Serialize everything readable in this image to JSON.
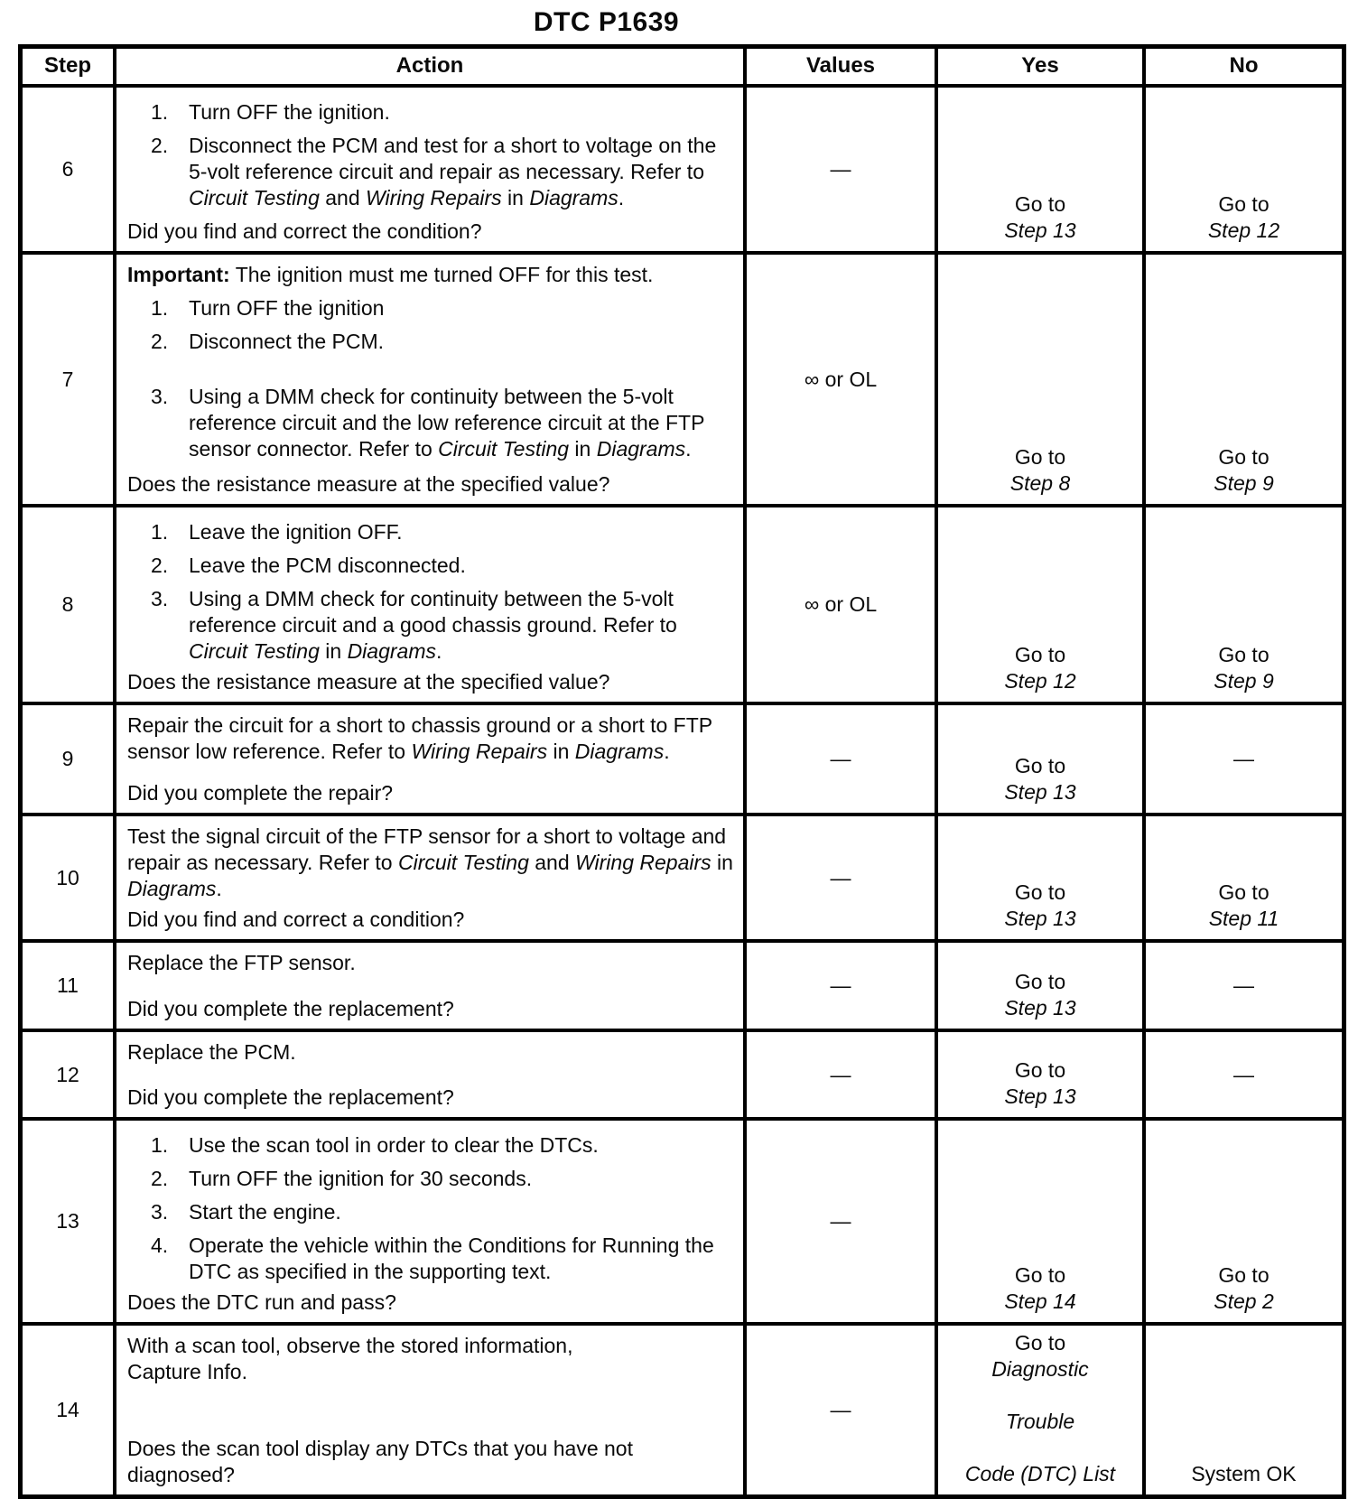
{
  "page_title": "DTC P1639",
  "table": {
    "em_dash": "—",
    "headers": {
      "step": "Step",
      "action": "Action",
      "values": "Values",
      "yes": "Yes",
      "no": "No"
    },
    "rows": [
      {
        "step": "6",
        "blocks": [
          {
            "type": "item",
            "n": "1.",
            "seg": [
              {
                "t": "Turn OFF the ignition."
              }
            ]
          },
          {
            "type": "item",
            "n": "2.",
            "seg": [
              {
                "t": "Disconnect the PCM and test for a short to voltage on the 5-volt reference circuit and repair as necessary. Refer to "
              },
              {
                "t": "Circuit Testing",
                "i": true
              },
              {
                "t": " and "
              },
              {
                "t": "Wiring Repairs",
                "i": true
              },
              {
                "t": " in "
              },
              {
                "t": "Diagrams",
                "i": true
              },
              {
                "t": "."
              }
            ]
          }
        ],
        "question": [
          {
            "t": "Did you find and correct the condition?"
          }
        ],
        "values": [
          {
            "t": "—"
          }
        ],
        "yes": [
          {
            "t": "Go to "
          },
          {
            "t": "Step 13",
            "i": true
          }
        ],
        "no": [
          {
            "t": "Go to "
          },
          {
            "t": "Step 12",
            "i": true
          }
        ]
      },
      {
        "step": "7",
        "blocks": [
          {
            "type": "para",
            "seg": [
              {
                "t": "Important:",
                "b": true
              },
              {
                "t": " The ignition must me turned OFF for this test."
              }
            ]
          },
          {
            "type": "item",
            "n": "1.",
            "seg": [
              {
                "t": "Turn OFF the ignition"
              }
            ]
          },
          {
            "type": "item",
            "n": "2.",
            "seg": [
              {
                "t": "Disconnect the PCM."
              }
            ]
          },
          {
            "type": "item",
            "n": "3.",
            "gap": true,
            "seg": [
              {
                "t": "Using a DMM check for continuity between the 5-volt reference circuit and the low reference circuit at the FTP sensor connector. Refer to "
              },
              {
                "t": "Circuit Testing",
                "i": true
              },
              {
                "t": " in "
              },
              {
                "t": "Diagrams",
                "i": true
              },
              {
                "t": "."
              }
            ]
          }
        ],
        "question": [
          {
            "t": "Does the resistance measure at the specified value?"
          }
        ],
        "values": [
          {
            "t": "∞ or OL"
          }
        ],
        "yes": [
          {
            "t": "Go to "
          },
          {
            "t": "Step 8",
            "i": true
          }
        ],
        "no": [
          {
            "t": "Go to "
          },
          {
            "t": "Step 9",
            "i": true
          }
        ]
      },
      {
        "step": "8",
        "blocks": [
          {
            "type": "item",
            "n": "1.",
            "seg": [
              {
                "t": "Leave the ignition OFF."
              }
            ]
          },
          {
            "type": "item",
            "n": "2.",
            "seg": [
              {
                "t": "Leave the PCM disconnected."
              }
            ]
          },
          {
            "type": "item",
            "n": "3.",
            "seg": [
              {
                "t": "Using a DMM check for continuity between the 5-volt reference circuit and a good chassis ground. Refer to "
              },
              {
                "t": "Circuit Testing",
                "i": true
              },
              {
                "t": " in "
              },
              {
                "t": "Diagrams",
                "i": true
              },
              {
                "t": "."
              }
            ]
          }
        ],
        "question": [
          {
            "t": "Does the resistance measure at the specified value?"
          }
        ],
        "values": [
          {
            "t": "∞ or OL"
          }
        ],
        "yes": [
          {
            "t": "Go to "
          },
          {
            "t": "Step 12",
            "i": true
          }
        ],
        "no": [
          {
            "t": "Go to "
          },
          {
            "t": "Step 9",
            "i": true
          }
        ]
      },
      {
        "step": "9",
        "blocks": [
          {
            "type": "para",
            "seg": [
              {
                "t": "Repair the circuit for a short to chassis ground or a short to FTP sensor low reference. Refer to "
              },
              {
                "t": "Wiring Repairs",
                "i": true
              },
              {
                "t": " in "
              },
              {
                "t": "Diagrams",
                "i": true
              },
              {
                "t": "."
              }
            ]
          }
        ],
        "question": [
          {
            "t": "Did you complete the repair?"
          }
        ],
        "values": [
          {
            "t": "—"
          }
        ],
        "yes": [
          {
            "t": "Go to "
          },
          {
            "t": "Step 13",
            "i": true
          }
        ],
        "no": [
          {
            "t": "—"
          }
        ]
      },
      {
        "step": "10",
        "blocks": [
          {
            "type": "para",
            "seg": [
              {
                "t": "Test the signal circuit of the FTP sensor for a short to voltage and repair as necessary. Refer to "
              },
              {
                "t": "Circuit Testing",
                "i": true
              },
              {
                "t": " and "
              },
              {
                "t": "Wiring Repairs",
                "i": true
              },
              {
                "t": " in "
              },
              {
                "t": "Diagrams",
                "i": true
              },
              {
                "t": "."
              }
            ]
          }
        ],
        "question": [
          {
            "t": "Did you find and correct a condition?"
          }
        ],
        "values": [
          {
            "t": "—"
          }
        ],
        "yes": [
          {
            "t": "Go to "
          },
          {
            "t": "Step 13",
            "i": true
          }
        ],
        "no": [
          {
            "t": "Go to "
          },
          {
            "t": "Step 11",
            "i": true
          }
        ]
      },
      {
        "step": "11",
        "blocks": [
          {
            "type": "para",
            "seg": [
              {
                "t": "Replace the FTP sensor."
              }
            ]
          }
        ],
        "question": [
          {
            "t": "Did you complete the replacement?"
          }
        ],
        "values": [
          {
            "t": "—"
          }
        ],
        "yes": [
          {
            "t": "Go to "
          },
          {
            "t": "Step 13",
            "i": true
          }
        ],
        "no": [
          {
            "t": "—"
          }
        ]
      },
      {
        "step": "12",
        "blocks": [
          {
            "type": "para",
            "seg": [
              {
                "t": "Replace the PCM."
              }
            ]
          }
        ],
        "question": [
          {
            "t": "Did you complete the replacement?"
          }
        ],
        "values": [
          {
            "t": "—"
          }
        ],
        "yes": [
          {
            "t": "Go to "
          },
          {
            "t": "Step 13",
            "i": true
          }
        ],
        "no": [
          {
            "t": "—"
          }
        ]
      },
      {
        "step": "13",
        "blocks": [
          {
            "type": "item",
            "n": "1.",
            "seg": [
              {
                "t": "Use the scan tool in order to clear the DTCs."
              }
            ]
          },
          {
            "type": "item",
            "n": "2.",
            "seg": [
              {
                "t": "Turn OFF the ignition for 30 seconds."
              }
            ]
          },
          {
            "type": "item",
            "n": "3.",
            "seg": [
              {
                "t": "Start the engine."
              }
            ]
          },
          {
            "type": "item",
            "n": "4.",
            "seg": [
              {
                "t": "Operate the vehicle within the Conditions for Running the DTC as specified in the supporting text."
              }
            ]
          }
        ],
        "question": [
          {
            "t": "Does the DTC run and pass?"
          }
        ],
        "values": [
          {
            "t": "—"
          }
        ],
        "yes": [
          {
            "t": "Go to "
          },
          {
            "t": "Step 14",
            "i": true
          }
        ],
        "no": [
          {
            "t": "Go to "
          },
          {
            "t": "Step 2",
            "i": true
          }
        ]
      },
      {
        "step": "14",
        "blocks": [
          {
            "type": "para",
            "seg": [
              {
                "t": "With a scan tool, observe the stored information,"
              },
              {
                "br": true
              },
              {
                "t": "Capture Info."
              }
            ]
          }
        ],
        "question": [
          {
            "t": "Does the scan tool display any DTCs that you have not diagnosed?"
          }
        ],
        "values": [
          {
            "t": "—"
          }
        ],
        "yes": [
          {
            "t": "Go to "
          },
          {
            "t": "Diagnostic",
            "i": true
          },
          {
            "br": true
          },
          {
            "t": "Trouble",
            "i": true
          },
          {
            "br": true
          },
          {
            "t": "Code (DTC) List",
            "i": true
          }
        ],
        "no": [
          {
            "t": "System OK"
          }
        ]
      }
    ]
  }
}
